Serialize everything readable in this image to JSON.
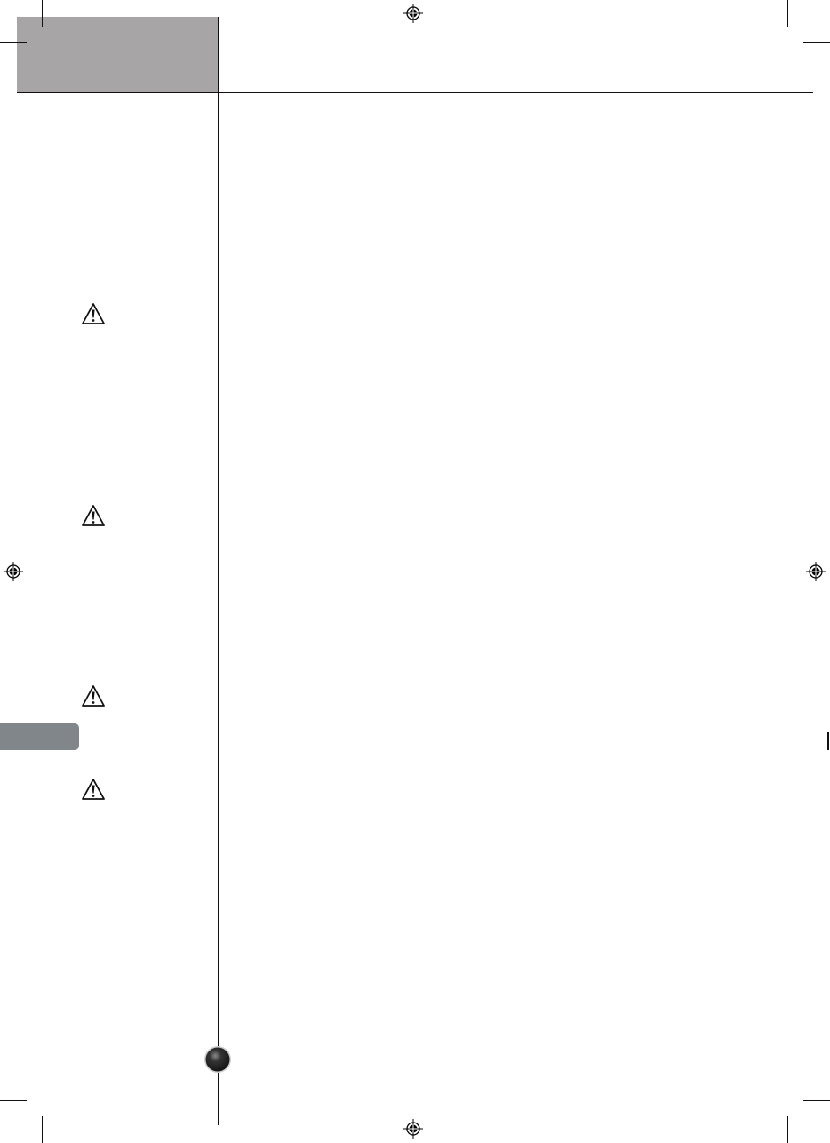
{
  "colors": {
    "header_block": "#a7a5a6",
    "side_tab": "#80868a",
    "rule": "#111111",
    "page_ball": "#333333"
  },
  "icons": {
    "warning": "warning-triangle-icon",
    "registration": "registration-mark-icon",
    "page_marker": "page-ball-icon"
  }
}
